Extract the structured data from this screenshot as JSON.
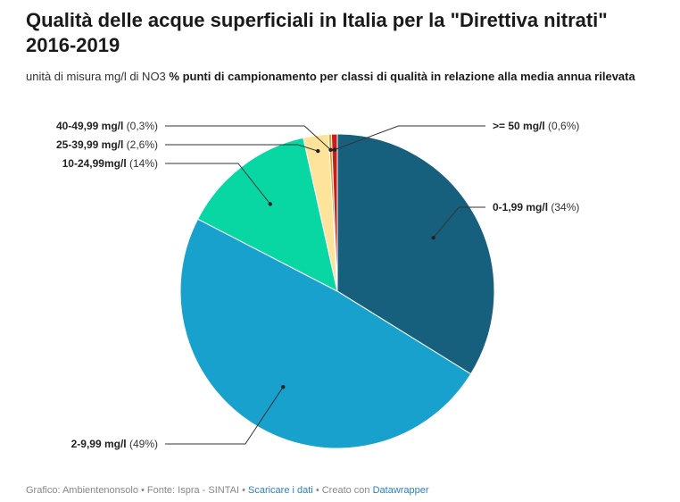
{
  "title": "Qualità delle acque superficiali in Italia per la \"Direttiva nitrati\" 2016-2019",
  "subtitle": {
    "unit": "unità di misura mg/l di NO3",
    "description": "% punti di campionamento per classi di qualità in relazione alla media annua rilevata"
  },
  "chart_data": {
    "type": "pie",
    "title": "Qualità delle acque superficiali in Italia per la \"Direttiva nitrati\" 2016-2019",
    "slices": [
      {
        "label": "0-1,99 mg/l",
        "value_label": "(34%)",
        "value": 34,
        "color": "#17607d"
      },
      {
        "label": "2-9,99 mg/l",
        "value_label": "(49%)",
        "value": 49,
        "color": "#18a1cd"
      },
      {
        "label": "10-24,99mg/l",
        "value_label": "(14%)",
        "value": 14,
        "color": "#09d7a3"
      },
      {
        "label": "25-39,99 mg/l",
        "value_label": "(2,6%)",
        "value": 2.6,
        "color": "#fde49a"
      },
      {
        "label": "40-49,99 mg/l",
        "value_label": "(0,3%)",
        "value": 0.3,
        "color": "#e89b26"
      },
      {
        "label": ">= 50 mg/l",
        "value_label": "(0,6%)",
        "value": 0.6,
        "color": "#c71e1d"
      }
    ]
  },
  "footer": {
    "credit": "Grafico: Ambientenonsolo • Fonte: Ispra - SINTAI • ",
    "download_link": "Scaricare i dati",
    "separator": " • Creato con ",
    "tool_link": "Datawrapper"
  }
}
